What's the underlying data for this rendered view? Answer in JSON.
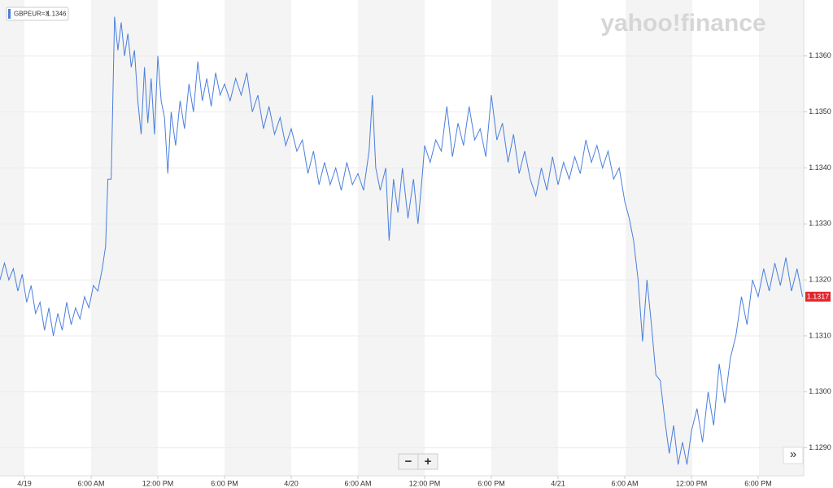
{
  "chart_data": {
    "type": "line",
    "watermark": "yahoo!finance",
    "legend_value": 1.1346,
    "last_price": 1.1317,
    "x": [
      -2.2,
      -1.8,
      -1.4,
      -1,
      -0.6,
      -0.2,
      0.2,
      0.6,
      1,
      1.4,
      1.8,
      2.2,
      2.6,
      3,
      3.4,
      3.8,
      4.2,
      4.6,
      5,
      5.4,
      5.8,
      6.2,
      6.6,
      7,
      7.3,
      7.5,
      7.8,
      8.1,
      8.4,
      8.7,
      9,
      9.3,
      9.6,
      9.9,
      10.2,
      10.5,
      10.8,
      11.1,
      11.4,
      11.7,
      12,
      12.3,
      12.6,
      12.9,
      13.2,
      13.6,
      14,
      14.4,
      14.8,
      15.2,
      15.6,
      16,
      16.4,
      16.8,
      17.2,
      17.6,
      18,
      18.5,
      19,
      19.5,
      20,
      20.5,
      21,
      21.5,
      22,
      22.5,
      23,
      23.5,
      24,
      24.5,
      25,
      25.5,
      26,
      26.5,
      27,
      27.5,
      28,
      28.5,
      29,
      29.5,
      30,
      30.5,
      31,
      31.3,
      31.6,
      32,
      32.5,
      32.8,
      33.2,
      33.6,
      34,
      34.5,
      35,
      35.4,
      35.8,
      36,
      36.5,
      37,
      37.5,
      38,
      38.5,
      39,
      39.5,
      40,
      40.5,
      41,
      41.5,
      42,
      42.5,
      43,
      43.5,
      44,
      44.5,
      45,
      45.5,
      46,
      46.5,
      47,
      47.5,
      48,
      48.5,
      49,
      49.5,
      50,
      50.5,
      51,
      51.5,
      52,
      52.5,
      53,
      53.5,
      54,
      54.4,
      54.8,
      55.2,
      55.6,
      56,
      56.4,
      56.8,
      57.2,
      57.6,
      58,
      58.4,
      58.8,
      59.2,
      59.6,
      60,
      60.5,
      61,
      61.5,
      62,
      62.5,
      63,
      63.5,
      64,
      64.5,
      65,
      65.5,
      66,
      66.5,
      67,
      67.5,
      68,
      68.5,
      69,
      69.5,
      70
    ],
    "series": [
      {
        "name": "GBPEUR=X",
        "color": "#4a7fdc",
        "values": [
          1.132,
          1.1323,
          1.132,
          1.1322,
          1.1318,
          1.1321,
          1.1316,
          1.1319,
          1.1314,
          1.1316,
          1.1311,
          1.1315,
          1.131,
          1.1314,
          1.1311,
          1.1316,
          1.1312,
          1.1315,
          1.1313,
          1.1317,
          1.1315,
          1.1319,
          1.1318,
          1.1322,
          1.1326,
          1.1338,
          1.1338,
          1.1367,
          1.1361,
          1.1366,
          1.136,
          1.1364,
          1.1358,
          1.1361,
          1.1352,
          1.1346,
          1.1358,
          1.1348,
          1.1356,
          1.1346,
          1.136,
          1.1352,
          1.1349,
          1.1339,
          1.135,
          1.1344,
          1.1352,
          1.1347,
          1.1355,
          1.135,
          1.1359,
          1.1352,
          1.1356,
          1.1351,
          1.1357,
          1.1353,
          1.1355,
          1.1352,
          1.1356,
          1.1353,
          1.1357,
          1.135,
          1.1353,
          1.1347,
          1.1351,
          1.1346,
          1.1349,
          1.1344,
          1.1347,
          1.1343,
          1.1345,
          1.1339,
          1.1343,
          1.1337,
          1.1341,
          1.1337,
          1.134,
          1.1336,
          1.1341,
          1.1337,
          1.1339,
          1.1336,
          1.1343,
          1.1353,
          1.134,
          1.1336,
          1.134,
          1.1327,
          1.1338,
          1.1332,
          1.134,
          1.1331,
          1.1338,
          1.133,
          1.1339,
          1.1344,
          1.1341,
          1.1345,
          1.1343,
          1.1351,
          1.1342,
          1.1348,
          1.1344,
          1.1351,
          1.1345,
          1.1347,
          1.1342,
          1.1353,
          1.1345,
          1.1348,
          1.1341,
          1.1346,
          1.1339,
          1.1343,
          1.1338,
          1.1335,
          1.134,
          1.1336,
          1.1342,
          1.1337,
          1.1341,
          1.1338,
          1.1342,
          1.1339,
          1.1345,
          1.1341,
          1.1344,
          1.134,
          1.1343,
          1.1338,
          1.134,
          1.1334,
          1.1331,
          1.1327,
          1.132,
          1.1309,
          1.132,
          1.1312,
          1.1303,
          1.1302,
          1.1295,
          1.1289,
          1.1294,
          1.1287,
          1.1291,
          1.1287,
          1.1293,
          1.1297,
          1.1291,
          1.13,
          1.1294,
          1.1305,
          1.1298,
          1.1306,
          1.131,
          1.1317,
          1.1312,
          1.132,
          1.1317,
          1.1322,
          1.1318,
          1.1323,
          1.1319,
          1.1324,
          1.1318,
          1.1322,
          1.1317
        ]
      }
    ],
    "xlim": [
      -2.2,
      70.1
    ],
    "xticks": [
      {
        "value": 0,
        "label": "4/19"
      },
      {
        "value": 6,
        "label": "6:00 AM"
      },
      {
        "value": 12,
        "label": "12:00 PM"
      },
      {
        "value": 18,
        "label": "6:00 PM"
      },
      {
        "value": 24,
        "label": "4/20"
      },
      {
        "value": 30,
        "label": "6:00 AM"
      },
      {
        "value": 36,
        "label": "12:00 PM"
      },
      {
        "value": 42,
        "label": "6:00 PM"
      },
      {
        "value": 48,
        "label": "4/21"
      },
      {
        "value": 54,
        "label": "6:00 AM"
      },
      {
        "value": 60,
        "label": "12:00 PM"
      },
      {
        "value": 66,
        "label": "6:00 PM"
      }
    ],
    "ylim": [
      1.1285,
      1.137
    ],
    "yticks": [
      {
        "value": 1.129,
        "label": "1.1290"
      },
      {
        "value": 1.13,
        "label": "1.1300"
      },
      {
        "value": 1.131,
        "label": "1.1310"
      },
      {
        "value": 1.132,
        "label": "1.1320"
      },
      {
        "value": 1.133,
        "label": "1.1330"
      },
      {
        "value": 1.134,
        "label": "1.1340"
      },
      {
        "value": 1.135,
        "label": "1.1350"
      },
      {
        "value": 1.136,
        "label": "1.1360"
      }
    ],
    "grid": true
  },
  "controls": {
    "zoom_out": "−",
    "zoom_in": "+",
    "expand": "»"
  }
}
